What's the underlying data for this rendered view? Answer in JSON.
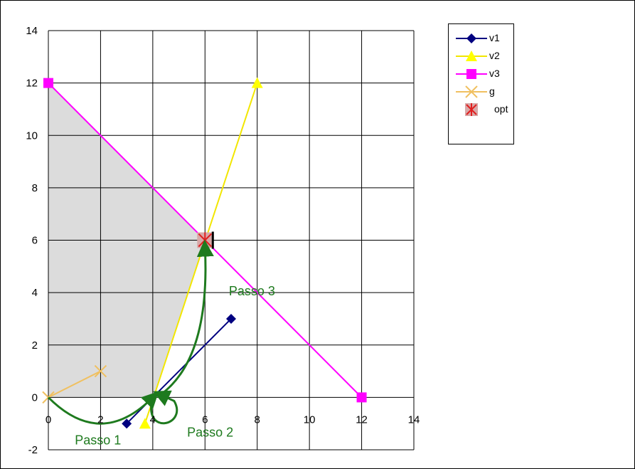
{
  "chart_data": {
    "type": "line",
    "xlim": [
      0,
      14
    ],
    "ylim": [
      -2,
      14
    ],
    "xticks": [
      0,
      2,
      4,
      6,
      8,
      10,
      12,
      14
    ],
    "yticks": [
      -2,
      0,
      2,
      4,
      6,
      8,
      10,
      12,
      14
    ],
    "grid": true,
    "legend_position": "top-right",
    "series": [
      {
        "name": "v1",
        "color": "#000080",
        "marker": "diamond",
        "points": [
          [
            3,
            -1
          ],
          [
            7,
            3
          ]
        ]
      },
      {
        "name": "v2",
        "color": "#ffff00",
        "marker": "triangle",
        "points": [
          [
            3.7,
            -1
          ],
          [
            8,
            12
          ]
        ]
      },
      {
        "name": "v3",
        "color": "#ff00ff",
        "marker": "square",
        "points": [
          [
            0,
            12
          ],
          [
            12,
            0
          ]
        ]
      },
      {
        "name": "g",
        "color": "#f0c060",
        "marker": "x",
        "points": [
          [
            0,
            0
          ],
          [
            2,
            1
          ]
        ]
      },
      {
        "name": "opt",
        "color": "#e02020",
        "marker": "asterisk",
        "points": [
          [
            6,
            6
          ]
        ]
      }
    ],
    "feasible_region": [
      [
        0,
        0
      ],
      [
        0,
        12
      ],
      [
        6,
        6
      ],
      [
        4,
        0
      ]
    ],
    "annotations": [
      {
        "text": "Passo 1",
        "x": 1.9,
        "y": -1.8
      },
      {
        "text": "Passo 2",
        "x": 6.2,
        "y": -1.5
      },
      {
        "text": "Passo 3",
        "x": 7.8,
        "y": 3.9
      }
    ],
    "path_steps": [
      {
        "from": [
          0,
          0
        ],
        "to": [
          4,
          0
        ],
        "control": [
          2,
          -2
        ]
      },
      {
        "from": [
          4,
          0
        ],
        "to": [
          4.3,
          0.1
        ],
        "loop": true
      },
      {
        "from": [
          4.3,
          0.1
        ],
        "to": [
          6,
          5.7
        ],
        "control": [
          6.2,
          1.5
        ]
      }
    ]
  }
}
